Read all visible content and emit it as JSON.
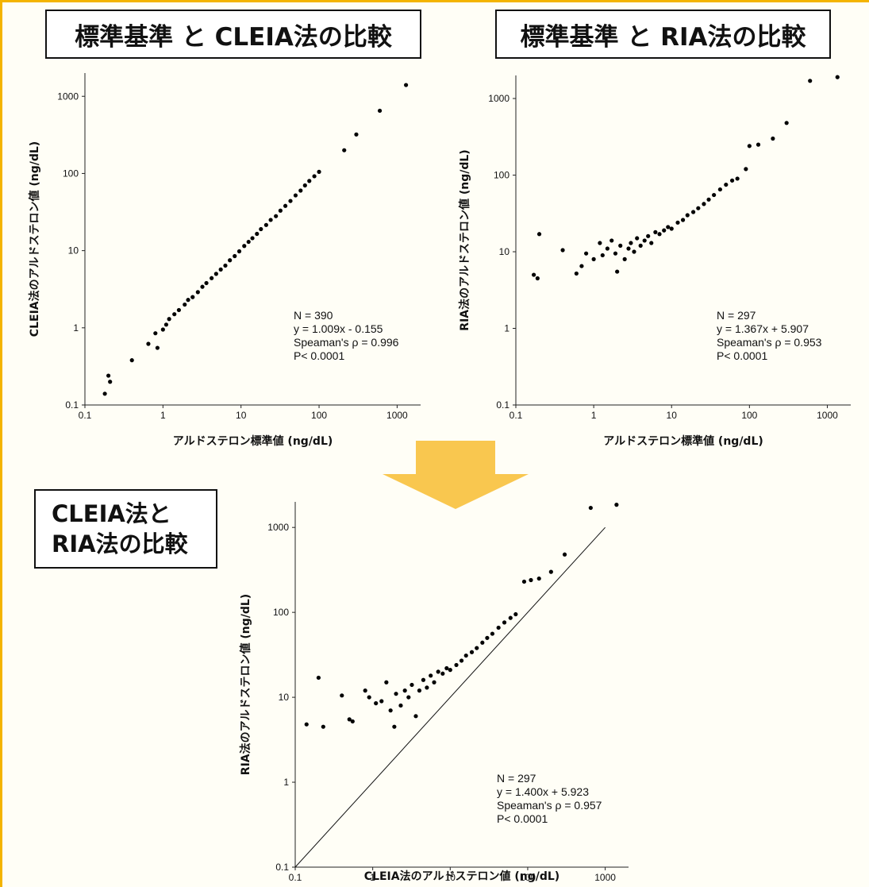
{
  "colors": {
    "frame": "#f4b400",
    "arrow": "#f9c74f",
    "marks": "#000000"
  },
  "headings": {
    "left": "標準基準 と CLEIA法の比較",
    "right": "標準基準 と RIA法の比較",
    "bottom_line1": "CLEIA法と",
    "bottom_line2": "RIA法の比較"
  },
  "chart_data": [
    {
      "type": "scatter",
      "xlabel": "アルドステロン標準値 (ng/dL)",
      "ylabel": "CLEIA法のアルドステロン値 (ng/dL)",
      "xscale": "log",
      "yscale": "log",
      "xlim": [
        0.1,
        2000
      ],
      "ylim": [
        0.1,
        2000
      ],
      "xticks": [
        "0.1",
        "1",
        "10",
        "100",
        "1000"
      ],
      "yticks": [
        "0.1",
        "1",
        "10",
        "100",
        "1000"
      ],
      "annotations": [
        "N = 390",
        "y = 1.009x - 0.155",
        "Speaman's ρ = 0.996",
        "P< 0.0001"
      ],
      "points": [
        [
          0.18,
          0.14
        ],
        [
          0.2,
          0.24
        ],
        [
          0.21,
          0.2
        ],
        [
          0.4,
          0.38
        ],
        [
          0.65,
          0.62
        ],
        [
          0.8,
          0.85
        ],
        [
          0.85,
          0.55
        ],
        [
          1.0,
          0.95
        ],
        [
          1.1,
          1.1
        ],
        [
          1.2,
          1.3
        ],
        [
          1.4,
          1.5
        ],
        [
          1.6,
          1.7
        ],
        [
          1.9,
          2.0
        ],
        [
          2.1,
          2.3
        ],
        [
          2.4,
          2.5
        ],
        [
          2.8,
          2.9
        ],
        [
          3.2,
          3.4
        ],
        [
          3.6,
          3.8
        ],
        [
          4.2,
          4.4
        ],
        [
          4.8,
          5.0
        ],
        [
          5.5,
          5.7
        ],
        [
          6.3,
          6.4
        ],
        [
          7.2,
          7.5
        ],
        [
          8.3,
          8.5
        ],
        [
          9.5,
          9.8
        ],
        [
          11,
          11.5
        ],
        [
          12.5,
          13
        ],
        [
          14,
          14.5
        ],
        [
          16,
          16.5
        ],
        [
          18,
          19
        ],
        [
          21,
          21.5
        ],
        [
          24,
          25
        ],
        [
          28,
          28
        ],
        [
          32,
          33
        ],
        [
          37,
          38
        ],
        [
          43,
          44
        ],
        [
          50,
          52
        ],
        [
          58,
          60
        ],
        [
          66,
          70
        ],
        [
          75,
          80
        ],
        [
          87,
          92
        ],
        [
          100,
          105
        ],
        [
          210,
          200
        ],
        [
          300,
          320
        ],
        [
          600,
          650
        ],
        [
          1300,
          1400
        ]
      ]
    },
    {
      "type": "scatter",
      "xlabel": "アルドステロン標準値 (ng/dL)",
      "ylabel": "RIA法のアルドステロン値 (ng/dL)",
      "xscale": "log",
      "yscale": "log",
      "xlim": [
        0.1,
        2000
      ],
      "ylim": [
        0.1,
        2000
      ],
      "xticks": [
        "0.1",
        "1",
        "10",
        "100",
        "1000"
      ],
      "yticks": [
        "0.1",
        "1",
        "10",
        "100",
        "1000"
      ],
      "annotations": [
        "N = 297",
        "y = 1.367x + 5.907",
        "Speaman's ρ = 0.953",
        "P< 0.0001"
      ],
      "points": [
        [
          0.17,
          5.0
        ],
        [
          0.19,
          4.5
        ],
        [
          0.2,
          17
        ],
        [
          0.4,
          10.5
        ],
        [
          0.6,
          5.2
        ],
        [
          0.7,
          6.5
        ],
        [
          0.8,
          9.5
        ],
        [
          1.0,
          8
        ],
        [
          1.2,
          13
        ],
        [
          1.3,
          9
        ],
        [
          1.5,
          11
        ],
        [
          1.7,
          14
        ],
        [
          1.9,
          9.5
        ],
        [
          2.0,
          5.5
        ],
        [
          2.2,
          12
        ],
        [
          2.5,
          8
        ],
        [
          2.8,
          11
        ],
        [
          3.0,
          13
        ],
        [
          3.3,
          10
        ],
        [
          3.6,
          15
        ],
        [
          4.0,
          12
        ],
        [
          4.5,
          14
        ],
        [
          5.0,
          16
        ],
        [
          5.5,
          13
        ],
        [
          6.2,
          18
        ],
        [
          7,
          17
        ],
        [
          8,
          19
        ],
        [
          9,
          21
        ],
        [
          10,
          20
        ],
        [
          12,
          24
        ],
        [
          14,
          26
        ],
        [
          16,
          30
        ],
        [
          19,
          33
        ],
        [
          22,
          37
        ],
        [
          26,
          42
        ],
        [
          30,
          48
        ],
        [
          35,
          55
        ],
        [
          42,
          65
        ],
        [
          50,
          75
        ],
        [
          60,
          85
        ],
        [
          70,
          90
        ],
        [
          90,
          120
        ],
        [
          100,
          240
        ],
        [
          130,
          250
        ],
        [
          200,
          300
        ],
        [
          300,
          480
        ],
        [
          600,
          1700
        ],
        [
          1350,
          1900
        ]
      ]
    },
    {
      "type": "scatter",
      "xlabel": "CLEIA法のアルドステロン値 (ng/dL)",
      "ylabel": "RIA法のアルドステロン値 (ng/dL)",
      "xscale": "log",
      "yscale": "log",
      "xlim": [
        0.1,
        2000
      ],
      "ylim": [
        0.1,
        2000
      ],
      "xticks": [
        "0.1",
        "1",
        "10",
        "100",
        "1000"
      ],
      "yticks": [
        "0.1",
        "1",
        "10",
        "100",
        "1000"
      ],
      "identity_line": true,
      "annotations": [
        "N = 297",
        "y = 1.400x + 5.923",
        "Speaman's ρ = 0.957",
        "P< 0.0001"
      ],
      "points": [
        [
          0.14,
          4.8
        ],
        [
          0.2,
          17
        ],
        [
          0.23,
          4.5
        ],
        [
          0.4,
          10.5
        ],
        [
          0.5,
          5.5
        ],
        [
          0.55,
          5.2
        ],
        [
          0.8,
          12
        ],
        [
          0.9,
          10
        ],
        [
          1.1,
          8.5
        ],
        [
          1.3,
          9
        ],
        [
          1.5,
          15
        ],
        [
          1.7,
          7
        ],
        [
          1.9,
          4.5
        ],
        [
          2.0,
          11
        ],
        [
          2.3,
          8
        ],
        [
          2.6,
          12
        ],
        [
          2.9,
          10
        ],
        [
          3.2,
          14
        ],
        [
          3.6,
          6
        ],
        [
          4.0,
          12
        ],
        [
          4.5,
          16
        ],
        [
          5,
          13
        ],
        [
          5.6,
          18
        ],
        [
          6.2,
          15
        ],
        [
          7,
          20
        ],
        [
          8,
          19
        ],
        [
          9,
          22
        ],
        [
          10,
          21
        ],
        [
          12,
          24
        ],
        [
          14,
          27
        ],
        [
          16,
          31
        ],
        [
          19,
          34
        ],
        [
          22,
          38
        ],
        [
          26,
          44
        ],
        [
          30,
          50
        ],
        [
          35,
          56
        ],
        [
          42,
          66
        ],
        [
          50,
          76
        ],
        [
          60,
          86
        ],
        [
          70,
          95
        ],
        [
          90,
          230
        ],
        [
          110,
          240
        ],
        [
          140,
          250
        ],
        [
          200,
          300
        ],
        [
          300,
          480
        ],
        [
          650,
          1700
        ],
        [
          1400,
          1850
        ]
      ]
    }
  ]
}
